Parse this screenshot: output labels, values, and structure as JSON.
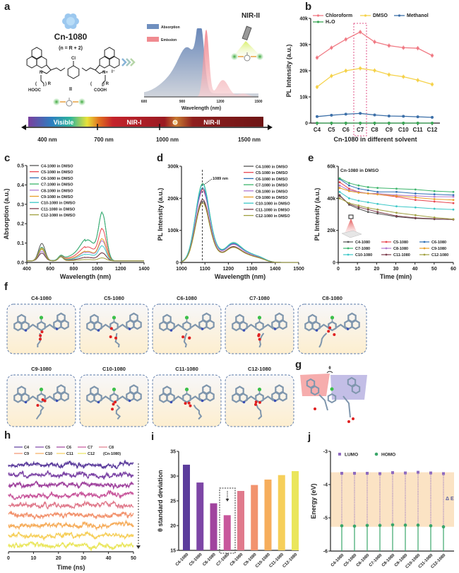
{
  "panel_letters": [
    "a",
    "b",
    "c",
    "d",
    "e",
    "f",
    "g",
    "h",
    "i",
    "j"
  ],
  "panel_a": {
    "compound": "Cn-1080",
    "formula_note": "(n = R + 2)",
    "roman": "II",
    "atoms": {
      "cl": "Cl",
      "n_left": "N",
      "n_right": "N+",
      "iodide": "I⁻",
      "r_left": ") R",
      "r_right": ") R",
      "paren_left": "(",
      "paren_right": "(",
      "acid_left": "HOOC",
      "acid_right": "COOH"
    },
    "nir_title": "NIR-II",
    "legend": [
      "Absorption",
      "Emission"
    ],
    "legend_colors": [
      "#6f8fbf",
      "#f08a90"
    ],
    "xlabel": "Wavelength (nm)",
    "xticks": [
      "600",
      "900",
      "1200",
      "1500"
    ],
    "absorption_peak_nm": 1045,
    "emission_peak_nm": 1089,
    "spectrum_bar": {
      "regions": [
        "Visible",
        "NIR-I",
        "NIR-II"
      ],
      "ticks": [
        "400 nm",
        "700 nm",
        "1000 nm",
        "1500 nm"
      ]
    },
    "icons": [
      "snowflake-icon",
      "chevrons-right-icon",
      "flashlight-icon"
    ]
  },
  "chart_data": [
    {
      "id": "b",
      "type": "line",
      "xlabel": "Cn-1080 in different solvent",
      "ylabel": "PL Intensity (a.u.)",
      "categories": [
        "C4",
        "C5",
        "C6",
        "C7",
        "C8",
        "C9",
        "C10",
        "C11",
        "C12"
      ],
      "ylim": [
        0,
        40000
      ],
      "yticks": [
        0,
        10000,
        20000,
        30000,
        40000
      ],
      "ytick_labels": [
        "0",
        "10k",
        "20k",
        "30k",
        "40k"
      ],
      "highlight": "C7",
      "legend_position": "top",
      "series": [
        {
          "name": "Chloroform",
          "color": "#f07a84",
          "values": [
            25000,
            28800,
            32000,
            34800,
            31000,
            29600,
            28800,
            28600,
            25800
          ]
        },
        {
          "name": "DMSO",
          "color": "#f5d24a",
          "values": [
            13800,
            18000,
            20000,
            20900,
            20100,
            18500,
            17700,
            16400,
            14800
          ]
        },
        {
          "name": "Methanol",
          "color": "#3c6fa8",
          "values": [
            2500,
            3000,
            3400,
            3700,
            3100,
            2700,
            2600,
            2400,
            2200
          ]
        },
        {
          "name": "H₂O",
          "color": "#3aa655",
          "values": [
            0,
            0,
            0,
            0,
            0,
            0,
            0,
            0,
            0
          ]
        }
      ]
    },
    {
      "id": "c",
      "type": "line",
      "xlabel": "Wavelength (nm)",
      "ylabel": "Absorption (a.u.)",
      "xlim": [
        400,
        1400
      ],
      "xticks": [
        400,
        600,
        800,
        1000,
        1200,
        1400
      ],
      "ylim": [
        0,
        0.5
      ],
      "yticks": [
        0,
        0.1,
        0.2,
        0.3,
        0.4,
        0.5
      ],
      "ytick_labels": [
        "0.0",
        "0.1",
        "0.2",
        "0.3",
        "0.4",
        "0.5"
      ],
      "legend_position": "top-left",
      "series": [
        {
          "name": "C4-1080 in DMSO",
          "color": "#555555",
          "peak_530": 0.09,
          "peak_1045": 0.04
        },
        {
          "name": "C5-1080 in DMSO",
          "color": "#e8454f",
          "peak_530": 0.07,
          "peak_1045": 0.16
        },
        {
          "name": "C6-1080 in DMSO",
          "color": "#2f6fb5",
          "peak_530": 0.07,
          "peak_1045": 0.24
        },
        {
          "name": "C7-1080 in DMSO",
          "color": "#3bb56a",
          "peak_530": 0.07,
          "peak_1045": 0.24
        },
        {
          "name": "C8-1080 in DMSO",
          "color": "#b07ad0",
          "peak_530": 0.05,
          "peak_1045": 0.1
        },
        {
          "name": "C9-1080 in DMSO",
          "color": "#e8a02a",
          "peak_530": 0.065,
          "peak_1045": 0.11
        },
        {
          "name": "C10-1080 in DMSO",
          "color": "#3cc8c8",
          "peak_530": 0.04,
          "peak_1045": 0.075
        },
        {
          "name": "C11-1080 in DMSO",
          "color": "#7b3b4b",
          "peak_530": 0.04,
          "peak_1045": 0.04
        },
        {
          "name": "C12-1080 in DMSO",
          "color": "#a0a040",
          "peak_530": 0.06,
          "peak_1045": 0.015
        }
      ]
    },
    {
      "id": "d",
      "type": "line",
      "xlabel": "Wavelength (nm)",
      "ylabel": "PL Intensity (a.u.)",
      "xlim": [
        1000,
        1500
      ],
      "xticks": [
        1000,
        1100,
        1200,
        1300,
        1400,
        1500
      ],
      "ylim": [
        0,
        300000
      ],
      "yticks": [
        0,
        100000,
        200000,
        300000
      ],
      "ytick_labels": [
        "0",
        "100k",
        "200k",
        "300k"
      ],
      "annotation": "1089 nm",
      "annotation_x": 1089,
      "legend_position": "top-right",
      "series": [
        {
          "name": "C4-1080 in DMSO",
          "color": "#555555",
          "peak": 185000
        },
        {
          "name": "C5-1080 in DMSO",
          "color": "#e8454f",
          "peak": 220000
        },
        {
          "name": "C6-1080 in DMSO",
          "color": "#2f6fb5",
          "peak": 225000
        },
        {
          "name": "C7-1080 in DMSO",
          "color": "#3bb56a",
          "peak": 238000
        },
        {
          "name": "C8-1080 in DMSO",
          "color": "#b07ad0",
          "peak": 215000
        },
        {
          "name": "C9-1080 in DMSO",
          "color": "#e8a02a",
          "peak": 180000
        },
        {
          "name": "C10-1080 in DMSO",
          "color": "#3cc8c8",
          "peak": 235000
        },
        {
          "name": "C11-1080 in DMSO",
          "color": "#7b3b4b",
          "peak": 190000
        },
        {
          "name": "C12-1080 in DMSO",
          "color": "#a0a040",
          "peak": 180000
        }
      ]
    },
    {
      "id": "e",
      "type": "line",
      "title": "Cn-1080 in DMSO",
      "xlabel": "Time (min)",
      "ylabel": "PL Intensity (a.u.)",
      "xlim": [
        0,
        60
      ],
      "xticks": [
        0,
        10,
        20,
        30,
        40,
        50,
        60
      ],
      "ylim": [
        0,
        60000
      ],
      "yticks": [
        0,
        20000,
        40000,
        60000
      ],
      "ytick_labels": [
        "0",
        "20k",
        "40k",
        "60k"
      ],
      "legend_position": "bottom",
      "x": [
        0,
        5,
        10,
        15,
        20,
        30,
        40,
        50,
        60
      ],
      "series": [
        {
          "name": "C4-1080",
          "color": "#555555",
          "values": [
            42000,
            36000,
            33500,
            31500,
            30500,
            28500,
            27500,
            27000,
            26800
          ]
        },
        {
          "name": "C5-1080",
          "color": "#e8454f",
          "values": [
            50000,
            46000,
            44000,
            43000,
            42500,
            41000,
            39000,
            38000,
            37000
          ]
        },
        {
          "name": "C6-1080",
          "color": "#2f6fb5",
          "values": [
            52000,
            48000,
            46000,
            45000,
            44000,
            44000,
            43000,
            42500,
            42000
          ]
        },
        {
          "name": "C7-1080",
          "color": "#3bb56a",
          "values": [
            52500,
            49500,
            48000,
            47000,
            46500,
            46000,
            45500,
            44500,
            44000
          ]
        },
        {
          "name": "C8-1080",
          "color": "#b07ad0",
          "values": [
            48000,
            45000,
            44000,
            43000,
            43000,
            42000,
            41500,
            41000,
            41000
          ]
        },
        {
          "name": "C9-1080",
          "color": "#e8a02a",
          "values": [
            46500,
            44500,
            43500,
            43000,
            42500,
            41500,
            40500,
            39500,
            39000
          ]
        },
        {
          "name": "C10-1080",
          "color": "#3cc8c8",
          "values": [
            44000,
            40000,
            38500,
            37500,
            36500,
            35000,
            34300,
            33500,
            33000
          ]
        },
        {
          "name": "C11-1080",
          "color": "#7b3b4b",
          "values": [
            41500,
            36500,
            34500,
            33000,
            31500,
            29000,
            27800,
            27200,
            26800
          ]
        },
        {
          "name": "C12-1080",
          "color": "#a0a040",
          "values": [
            40000,
            37000,
            35500,
            34000,
            33000,
            31000,
            29500,
            28000,
            27000
          ]
        }
      ]
    },
    {
      "id": "h",
      "type": "line",
      "xlabel": "Time (ns)",
      "xlim": [
        0,
        50
      ],
      "xticks": [
        0,
        10,
        20,
        30,
        40,
        50
      ],
      "legend_note": "(Cn-1080)",
      "legend_position": "top",
      "series": [
        {
          "name": "C4",
          "color": "#5b3c9c"
        },
        {
          "name": "C5",
          "color": "#7d46a6"
        },
        {
          "name": "C6",
          "color": "#a0449e"
        },
        {
          "name": "C7",
          "color": "#c8579c"
        },
        {
          "name": "C8",
          "color": "#e07a8c"
        },
        {
          "name": "C9",
          "color": "#f2936e"
        },
        {
          "name": "C10",
          "color": "#f6ad5c"
        },
        {
          "name": "C11",
          "color": "#f6cf5a"
        },
        {
          "name": "C12",
          "color": "#eae65c"
        }
      ]
    },
    {
      "id": "i",
      "type": "bar",
      "ylabel": "θ standard deviation",
      "categories": [
        "C4-1080",
        "C5-1080",
        "C6-1080",
        "C7-1080",
        "C8-1080",
        "C9-1080",
        "C10-1080",
        "C11-1080",
        "C12-1080"
      ],
      "values": [
        32.3,
        28.7,
        24.5,
        22.1,
        27.0,
        28.2,
        29.3,
        30.2,
        31.0
      ],
      "colors": [
        "#5b3c9c",
        "#7d46a6",
        "#a0449e",
        "#c8579c",
        "#e07a8c",
        "#f2936e",
        "#f6ad5c",
        "#f6cf5a",
        "#eae65c"
      ],
      "ylim": [
        15,
        35
      ],
      "yticks": [
        15,
        20,
        25,
        30,
        35
      ],
      "highlight": "C7-1080"
    },
    {
      "id": "j",
      "type": "scatter",
      "ylabel": "Energy (eV)",
      "categories": [
        "C4-1080",
        "C5-1080",
        "C6-1080",
        "C7-1080",
        "C8-1080",
        "C9-1080",
        "C10-1080",
        "C11-1080",
        "C12-1080"
      ],
      "ylim": [
        -6,
        -3
      ],
      "yticks": [
        -3,
        -4,
        -5,
        -6
      ],
      "annotation": "Δ E",
      "legend_position": "top-left",
      "series": [
        {
          "name": "LUMO",
          "color": "#8e6bbf",
          "values": [
            -3.66,
            -3.66,
            -3.66,
            -3.67,
            -3.64,
            -3.65,
            -3.63,
            -3.65,
            -3.67
          ]
        },
        {
          "name": "HOMO",
          "color": "#3aa66a",
          "values": [
            -5.24,
            -5.25,
            -5.23,
            -5.23,
            -5.21,
            -5.22,
            -5.22,
            -5.24,
            -5.27
          ]
        }
      ],
      "band_color": "#fbe3c4"
    }
  ],
  "panel_f": {
    "molecules": [
      "C4-1080",
      "C5-1080",
      "C6-1080",
      "C7-1080",
      "C8-1080",
      "C9-1080",
      "C10-1080",
      "C11-1080",
      "C12-1080"
    ]
  },
  "panel_g": {
    "angle_label": "θ"
  }
}
